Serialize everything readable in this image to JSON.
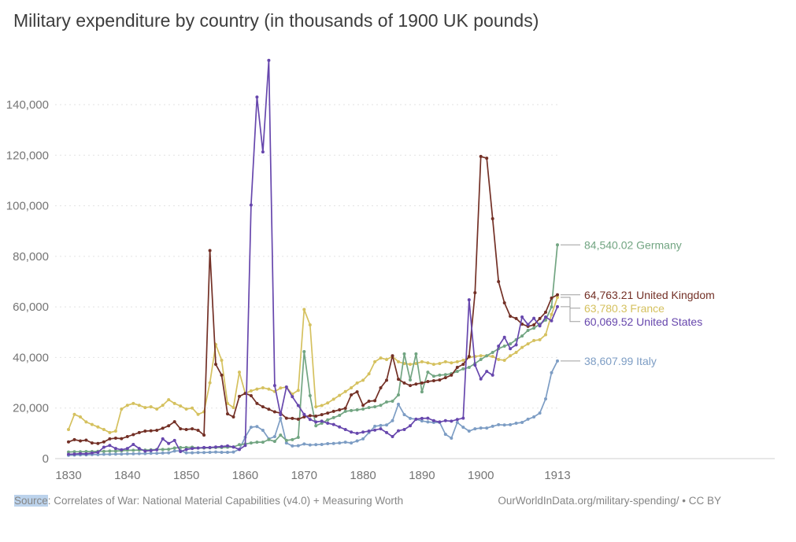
{
  "title": "Military expenditure by country (in thousands of 1900 UK pounds)",
  "footer": {
    "source_label": "Source",
    "source_text": ": Correlates of War: National Material Capabilities (v4.0) + Measuring Worth",
    "credit": "OurWorldInData.org/military-spending/ • CC BY"
  },
  "chart_data": {
    "type": "line",
    "title": "Military expenditure by country (in thousands of 1900 UK pounds)",
    "xlabel": "",
    "ylabel": "",
    "year_start": 1830,
    "year_end": 1913,
    "xticks": [
      1830,
      1840,
      1850,
      1860,
      1870,
      1880,
      1890,
      1900,
      1913
    ],
    "yticks": [
      0,
      20000,
      40000,
      60000,
      80000,
      100000,
      120000,
      140000
    ],
    "ylim": [
      0,
      160000
    ],
    "grid": "dashed-horizontal",
    "legend_position": "end-of-line-labels",
    "series": [
      {
        "name": "Germany",
        "color": "#72a582",
        "end_label": "84,540.02",
        "values": [
          2600,
          2700,
          2700,
          2800,
          2800,
          2900,
          2900,
          3000,
          3000,
          3100,
          3300,
          3300,
          3400,
          3400,
          3500,
          3600,
          3600,
          3700,
          4200,
          4400,
          4400,
          4500,
          4200,
          4200,
          4300,
          4400,
          4400,
          4500,
          4600,
          5500,
          5800,
          6200,
          6500,
          6500,
          7500,
          6800,
          9300,
          7200,
          7500,
          8400,
          42300,
          24900,
          13000,
          14000,
          15300,
          16200,
          17100,
          18700,
          19000,
          19300,
          19600,
          20200,
          20500,
          21100,
          22400,
          22700,
          25200,
          41400,
          31100,
          41400,
          26400,
          34200,
          32600,
          33000,
          33200,
          33600,
          34500,
          35500,
          36100,
          37600,
          39200,
          40700,
          42000,
          43500,
          44500,
          45400,
          47000,
          48500,
          50700,
          51600,
          53200,
          54800,
          60000,
          84540.02
        ]
      },
      {
        "name": "United Kingdom",
        "color": "#733026",
        "end_label": "64,763.21",
        "values": [
          6600,
          7500,
          7000,
          7300,
          6200,
          6000,
          6600,
          7800,
          8100,
          7900,
          8700,
          9500,
          10300,
          10900,
          11000,
          11200,
          12000,
          13000,
          14600,
          11800,
          11500,
          11800,
          11200,
          9300,
          82300,
          37300,
          33000,
          17700,
          16500,
          24600,
          25800,
          24900,
          21800,
          20500,
          19500,
          18500,
          18000,
          16000,
          15900,
          15600,
          16500,
          17000,
          16800,
          17400,
          18000,
          18700,
          19300,
          19900,
          25200,
          26400,
          21100,
          22700,
          22900,
          28000,
          31000,
          40700,
          31400,
          29900,
          28900,
          29500,
          29900,
          30500,
          30800,
          31100,
          32000,
          33000,
          36100,
          37300,
          40400,
          65600,
          119500,
          118800,
          94900,
          70000,
          61600,
          56300,
          55400,
          53200,
          52300,
          52900,
          55400,
          57900,
          63500,
          64763.21
        ]
      },
      {
        "name": "France",
        "color": "#d5c15f",
        "end_label": "63,780.3",
        "values": [
          11500,
          17500,
          16500,
          14500,
          13500,
          12500,
          11500,
          10300,
          10900,
          19600,
          21100,
          21800,
          21100,
          20200,
          20500,
          19600,
          21100,
          23300,
          21800,
          20800,
          19600,
          20000,
          17500,
          18500,
          30000,
          45100,
          38900,
          21800,
          20200,
          34200,
          25800,
          26800,
          27500,
          28000,
          27500,
          26500,
          27900,
          28300,
          25500,
          27000,
          59000,
          52900,
          20500,
          21000,
          22000,
          23500,
          25000,
          26500,
          28000,
          29900,
          31000,
          33500,
          38300,
          39800,
          39200,
          40400,
          38300,
          37600,
          37300,
          37600,
          38300,
          37900,
          37300,
          37600,
          38300,
          37900,
          38300,
          38900,
          40000,
          40400,
          40700,
          40700,
          40400,
          39200,
          38900,
          40700,
          42000,
          44000,
          45400,
          46700,
          47000,
          49000,
          57000,
          63780.3
        ]
      },
      {
        "name": "United States",
        "color": "#6747ad",
        "end_label": "60,069.52",
        "values": [
          1700,
          1800,
          2000,
          1900,
          2200,
          2500,
          4500,
          5200,
          4000,
          3500,
          4000,
          5600,
          4000,
          3000,
          3200,
          3500,
          7800,
          6000,
          7200,
          2800,
          3600,
          4000,
          4200,
          4400,
          4400,
          4600,
          4800,
          5000,
          4600,
          3600,
          5200,
          100300,
          143000,
          121300,
          157500,
          28900,
          17400,
          28300,
          24500,
          21000,
          17500,
          15500,
          14500,
          14800,
          14000,
          13500,
          12500,
          11500,
          10500,
          10000,
          10500,
          10900,
          11300,
          11800,
          10300,
          8700,
          11000,
          11500,
          13000,
          15600,
          15900,
          16000,
          15000,
          14500,
          15000,
          14800,
          15500,
          16000,
          62800,
          37000,
          31500,
          34500,
          33000,
          44500,
          48000,
          43500,
          45000,
          56000,
          53000,
          55500,
          52500,
          56000,
          54500,
          60069.52
        ]
      },
      {
        "name": "Italy",
        "color": "#7d9dc4",
        "end_label": "38,607.99",
        "values": [
          1300,
          1400,
          1500,
          1500,
          1600,
          1600,
          1700,
          1700,
          1800,
          1800,
          1900,
          1900,
          2000,
          2000,
          2100,
          2100,
          2200,
          2300,
          3000,
          3100,
          2300,
          2300,
          2400,
          2400,
          2500,
          2600,
          2500,
          2500,
          2600,
          3700,
          8500,
          12400,
          12700,
          11200,
          7800,
          8700,
          15900,
          6200,
          5000,
          5100,
          5800,
          5400,
          5500,
          5600,
          5900,
          6000,
          6200,
          6500,
          6200,
          7000,
          7800,
          10300,
          12800,
          13100,
          13300,
          15000,
          21500,
          17400,
          15900,
          15600,
          14900,
          14500,
          14300,
          14300,
          9600,
          8100,
          14300,
          12400,
          10900,
          11800,
          12100,
          12100,
          12800,
          13400,
          13300,
          13400,
          14000,
          14300,
          15600,
          16500,
          18000,
          23600,
          34000,
          38607.99
        ]
      }
    ]
  }
}
